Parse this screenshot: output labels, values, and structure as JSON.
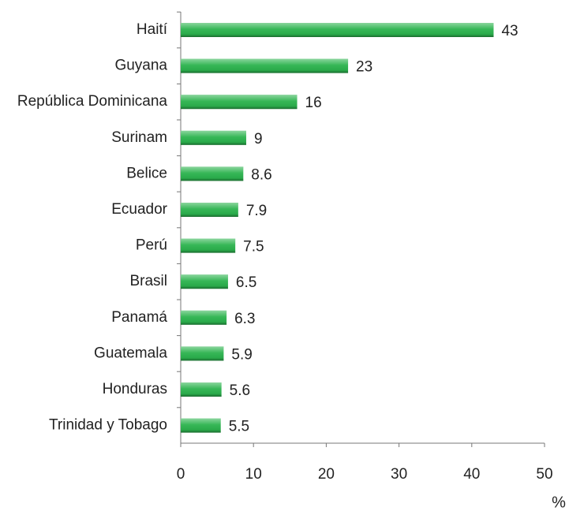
{
  "chart_data": {
    "type": "bar",
    "orientation": "horizontal",
    "categories": [
      "Haití",
      "Guyana",
      "República Dominicana",
      "Surinam",
      "Belice",
      "Ecuador",
      "Perú",
      "Brasil",
      "Panamá",
      "Guatemala",
      "Honduras",
      "Trinidad y Tobago"
    ],
    "values": [
      43,
      23,
      16,
      9,
      8.6,
      7.9,
      7.5,
      6.5,
      6.3,
      5.9,
      5.6,
      5.5
    ],
    "color": "#2cb34e",
    "xlabel": "%",
    "xlim": [
      0,
      50
    ],
    "xticks": [
      0,
      10,
      20,
      30,
      40,
      50
    ],
    "grid": false
  }
}
